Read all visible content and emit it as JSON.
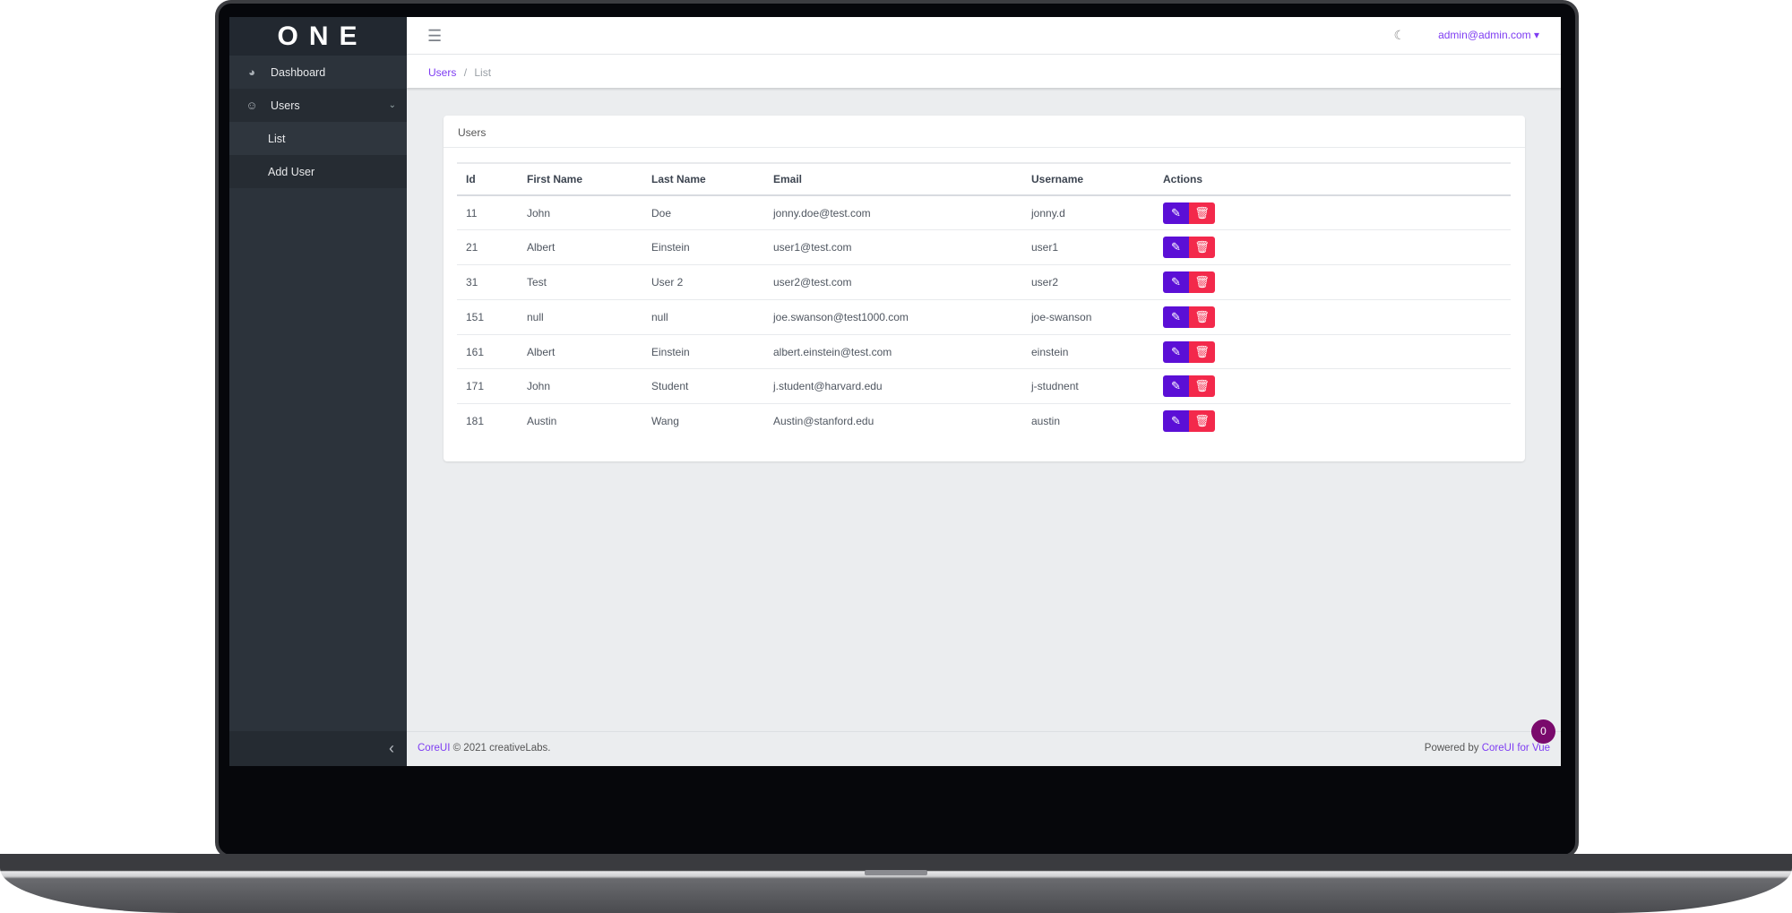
{
  "brand": "ONE",
  "sidebar": {
    "items": [
      {
        "label": "Dashboard",
        "icon": "speedometer-icon"
      },
      {
        "label": "Users",
        "icon": "user-icon"
      }
    ],
    "sub": [
      {
        "label": "List"
      },
      {
        "label": "Add User"
      }
    ],
    "toggle_icon": "chevron-left-icon"
  },
  "header": {
    "menu_icon": "hamburger-icon",
    "theme_icon": "moon-icon",
    "user": "admin@admin.com"
  },
  "breadcrumb": {
    "parent": "Users",
    "sep": "/",
    "current": "List"
  },
  "card": {
    "title": "Users"
  },
  "table": {
    "headers": [
      "Id",
      "First Name",
      "Last Name",
      "Email",
      "Username",
      "Actions"
    ],
    "rows": [
      [
        "11",
        "John",
        "Doe",
        "jonny.doe@test.com",
        "jonny.d"
      ],
      [
        "21",
        "Albert",
        "Einstein",
        "user1@test.com",
        "user1"
      ],
      [
        "31",
        "Test",
        "User 2",
        "user2@test.com",
        "user2"
      ],
      [
        "151",
        "null",
        "null",
        "joe.swanson@test1000.com",
        "joe-swanson"
      ],
      [
        "161",
        "Albert",
        "Einstein",
        "albert.einstein@test.com",
        "einstein"
      ],
      [
        "171",
        "John",
        "Student",
        "j.student@harvard.edu",
        "j-studnent"
      ],
      [
        "181",
        "Austin",
        "Wang",
        "Austin@stanford.edu",
        "austin"
      ]
    ]
  },
  "footer": {
    "brand_link": "CoreUI",
    "copyright": "© 2021 creativeLabs.",
    "powered": "Powered by",
    "powered_link": "CoreUI for Vue"
  },
  "bubble": "0",
  "colors": {
    "accent": "#7e3cf2",
    "edit": "#5b0fd6",
    "delete": "#f3294b",
    "sidebar": "#2c333b"
  }
}
